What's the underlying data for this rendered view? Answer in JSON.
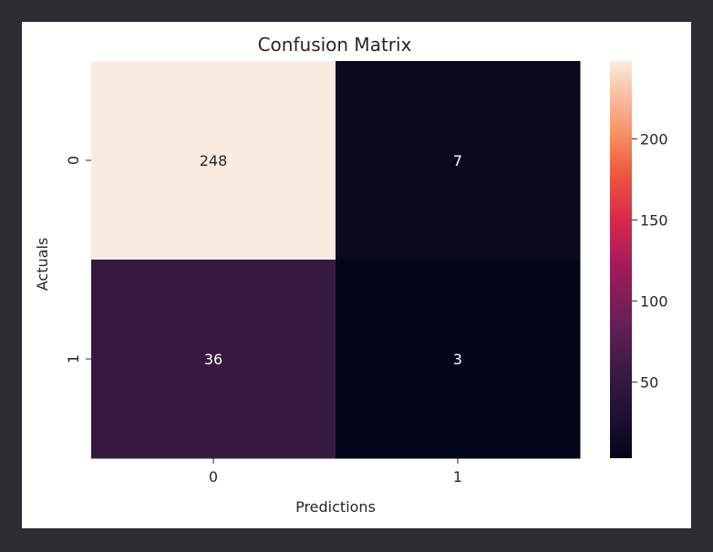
{
  "chart_data": {
    "type": "heatmap",
    "title": "Confusion Matrix",
    "xlabel": "Predictions",
    "ylabel": "Actuals",
    "x_categories": [
      "0",
      "1"
    ],
    "y_categories": [
      "0",
      "1"
    ],
    "values": [
      [
        248,
        7
      ],
      [
        36,
        3
      ]
    ],
    "colorbar": {
      "ticks": [
        50,
        100,
        150,
        200
      ],
      "range": [
        3,
        248
      ]
    },
    "colors": {
      "cell_0_0": "#f9ebe0",
      "cell_0_1": "#0a0a1e",
      "cell_1_0": "#37193f",
      "cell_1_1": "#03051a",
      "annot_light": "#262626",
      "annot_dark": "#ffffff"
    },
    "colormap": "rocket",
    "grid": false,
    "legend": "colorbar-right"
  }
}
